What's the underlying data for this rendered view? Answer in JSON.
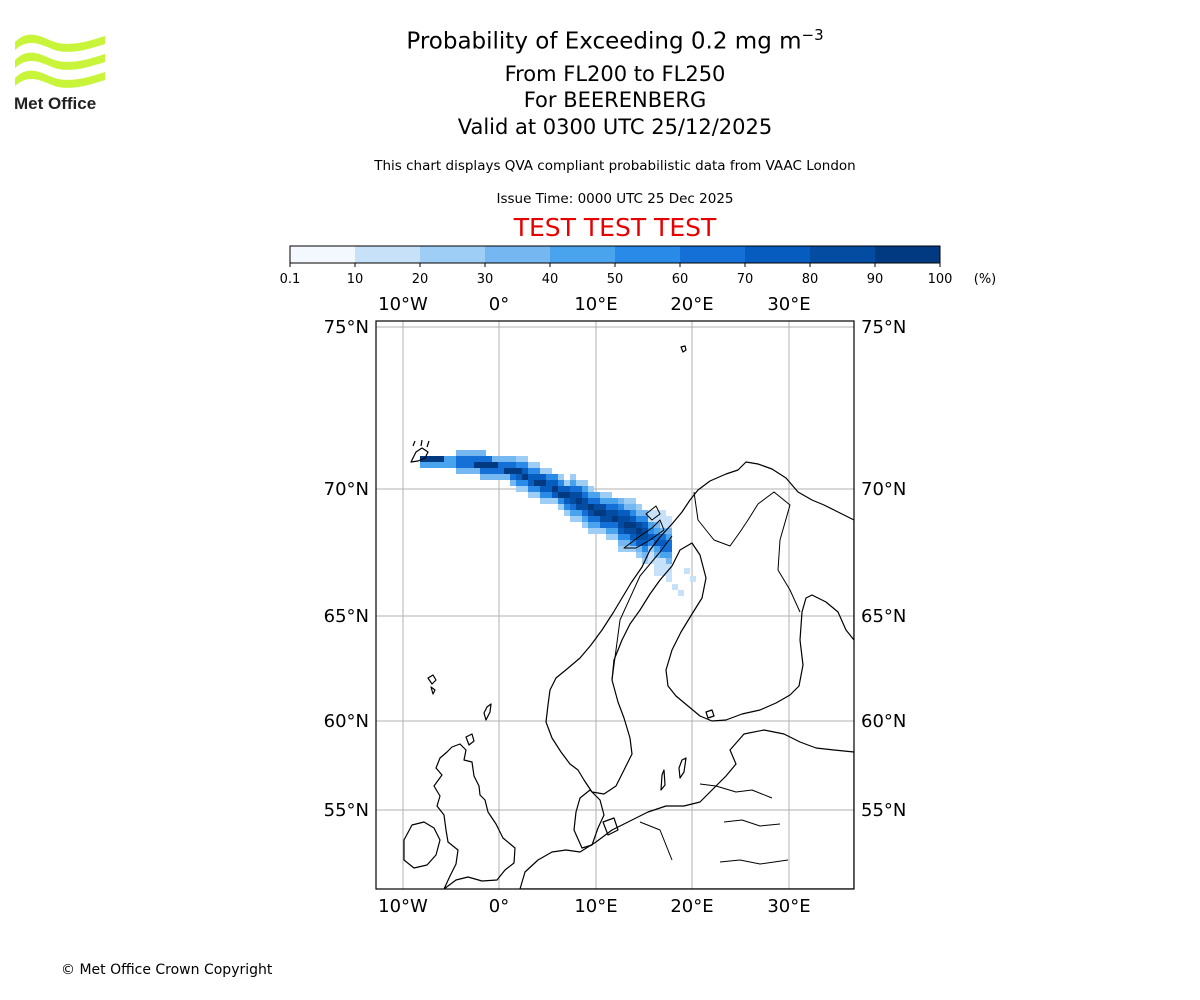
{
  "logo": {
    "brand_text": "Met Office",
    "color": "#c8f53a"
  },
  "title": {
    "line1": "Probability of Exceeding 0.2 mg m",
    "line1_superscript": "−3",
    "line2": "From FL200 to FL250",
    "line3": "For BEERENBERG",
    "line4": "Valid at 0300 UTC 25/12/2025"
  },
  "disclaimer": "This chart displays QVA compliant probabilistic data from VAAC London",
  "issue_time": "Issue Time: 0000 UTC 25 Dec 2025",
  "test_banner": "TEST TEST TEST",
  "colorbar": {
    "ticks": [
      "0.1",
      "10",
      "20",
      "30",
      "40",
      "50",
      "60",
      "70",
      "80",
      "90",
      "100"
    ],
    "unit": "(%)",
    "colors": [
      "#f3f8fe",
      "#c7e1f8",
      "#9ecdf5",
      "#74b7f1",
      "#4aa3ed",
      "#2a8ae8",
      "#1470d6",
      "#075cbf",
      "#044ca1",
      "#023a82",
      "#012a61"
    ]
  },
  "map": {
    "lon_ticks_top": [
      "10°W",
      "0°",
      "10°E",
      "20°E",
      "30°E"
    ],
    "lon_ticks_bottom": [
      "10°W",
      "0°",
      "10°E",
      "20°E",
      "30°E"
    ],
    "lat_ticks_left": [
      "75°N",
      "70°N",
      "65°N",
      "60°N",
      "55°N"
    ],
    "lat_ticks_right": [
      "75°N",
      "70°N",
      "65°N",
      "60°N",
      "55°N"
    ],
    "volcano": "BEERENBERG"
  },
  "copyright": "© Met Office Crown Copyright"
}
